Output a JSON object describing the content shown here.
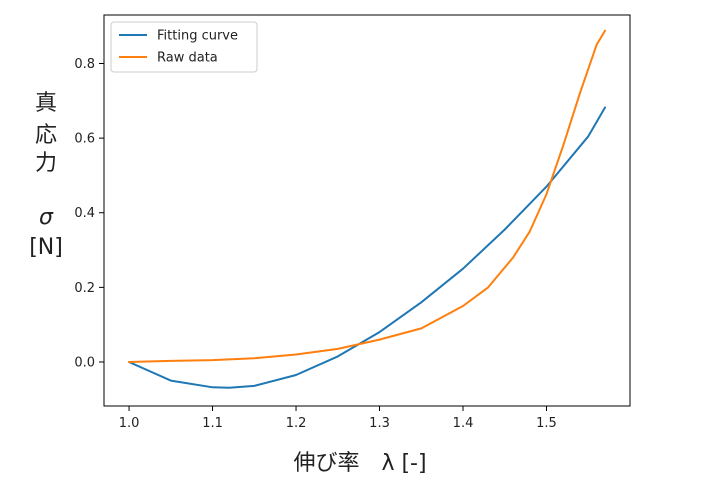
{
  "chart_data": {
    "type": "line",
    "xlabel": "伸び率　λ [-]",
    "ylabel_lines": [
      "真",
      "応",
      "力",
      "",
      "σ",
      "[N]"
    ],
    "xlim": [
      0.97,
      1.6
    ],
    "ylim": [
      -0.118,
      0.93
    ],
    "x_ticks": [
      1.0,
      1.1,
      1.2,
      1.3,
      1.4,
      1.5
    ],
    "x_tick_labels": [
      "1.0",
      "1.1",
      "1.2",
      "1.3",
      "1.4",
      "1.5"
    ],
    "y_ticks": [
      0.0,
      0.2,
      0.4,
      0.6,
      0.8
    ],
    "y_tick_labels": [
      "0.0",
      "0.2",
      "0.4",
      "0.6",
      "0.8"
    ],
    "grid": false,
    "legend_position": "top-left",
    "series": [
      {
        "name": "Fitting curve",
        "color": "#1f77b4",
        "x": [
          1.0,
          1.05,
          1.1,
          1.12,
          1.15,
          1.2,
          1.25,
          1.3,
          1.35,
          1.4,
          1.45,
          1.5,
          1.55,
          1.57
        ],
        "y": [
          0.0,
          -0.05,
          -0.068,
          -0.069,
          -0.064,
          -0.035,
          0.015,
          0.08,
          0.16,
          0.25,
          0.355,
          0.47,
          0.605,
          0.682
        ]
      },
      {
        "name": "Raw data",
        "color": "#ff7f0e",
        "x": [
          1.0,
          1.05,
          1.1,
          1.15,
          1.2,
          1.25,
          1.3,
          1.35,
          1.4,
          1.43,
          1.46,
          1.48,
          1.5,
          1.52,
          1.54,
          1.56,
          1.57
        ],
        "y": [
          0.0,
          0.003,
          0.005,
          0.01,
          0.02,
          0.035,
          0.06,
          0.09,
          0.15,
          0.2,
          0.28,
          0.35,
          0.45,
          0.58,
          0.72,
          0.85,
          0.888
        ]
      }
    ]
  }
}
